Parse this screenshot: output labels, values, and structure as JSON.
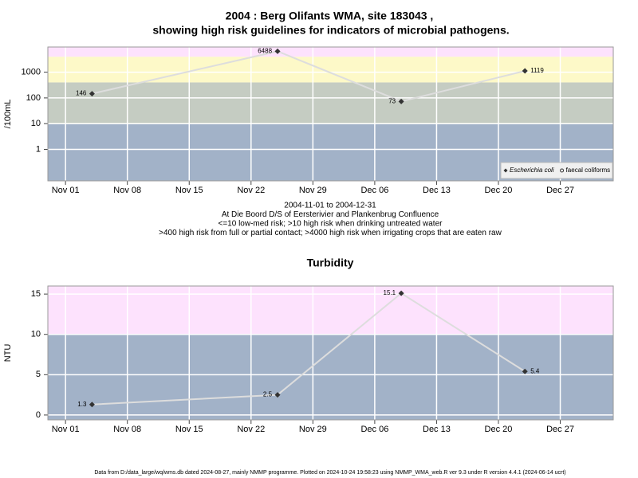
{
  "chart_data": [
    {
      "type": "line",
      "title": "2004 : Berg Olifants WMA, site 183043 ,",
      "subtitle": "showing high risk guidelines for indicators of microbial pathogens.",
      "ylabel": "/100mL",
      "notes": [
        "2004-11-01 to 2004-12-31",
        "At Die Boord D/S of Eersterivier and Plankenbrug Confluence",
        "<=10 low-med risk; >10 high risk when drinking untreated water",
        ">400 high risk from full or partial contact; >4000 high risk when irrigating crops that are eaten raw"
      ],
      "x": [
        "2004-11-04",
        "2004-11-25",
        "2004-12-09",
        "2004-12-23"
      ],
      "series": [
        {
          "name": "Escherichia coli",
          "marker": "diamond",
          "color": "#333333",
          "values": [
            146,
            6488,
            73,
            1119
          ]
        },
        {
          "name": "faecal coliforms",
          "marker": "circle",
          "color": "#333333",
          "values": [
            null,
            null,
            null,
            null
          ]
        }
      ],
      "line_color": "#dddddd",
      "log_y": true,
      "ylim": [
        0.06,
        9500
      ],
      "yticks": [
        1,
        10,
        100,
        1000
      ],
      "xlim": [
        "2004-10-30",
        "2005-01-02"
      ],
      "xticks": [
        {
          "value": "2004-11-01",
          "label": "Nov 01"
        },
        {
          "value": "2004-11-08",
          "label": "Nov 08"
        },
        {
          "value": "2004-11-15",
          "label": "Nov 15"
        },
        {
          "value": "2004-11-22",
          "label": "Nov 22"
        },
        {
          "value": "2004-11-29",
          "label": "Nov 29"
        },
        {
          "value": "2004-12-06",
          "label": "Dec 06"
        },
        {
          "value": "2004-12-13",
          "label": "Dec 13"
        },
        {
          "value": "2004-12-20",
          "label": "Dec 20"
        },
        {
          "value": "2004-12-27",
          "label": "Dec 27"
        }
      ],
      "bands": [
        {
          "range": [
            0.06,
            10
          ],
          "color": "#a2b2c8"
        },
        {
          "range": [
            10,
            400
          ],
          "color": "#c5ccc2"
        },
        {
          "range": [
            400,
            4000
          ],
          "color": "#fdf9c8"
        },
        {
          "range": [
            4000,
            9500
          ],
          "color": "#fde2fd"
        }
      ],
      "grid": true,
      "legend": "bottom-right"
    },
    {
      "type": "line",
      "title": "Turbidity",
      "ylabel": "NTU",
      "x": [
        "2004-11-04",
        "2004-11-25",
        "2004-12-09",
        "2004-12-23"
      ],
      "series": [
        {
          "marker": "diamond",
          "color": "#333333",
          "values": [
            1.3,
            2.5,
            15.1,
            5.4
          ]
        }
      ],
      "line_color": "#dddddd",
      "log_y": false,
      "ylim": [
        -0.6,
        16
      ],
      "yticks": [
        0,
        5,
        10,
        15
      ],
      "xlim": [
        "2004-10-30",
        "2005-01-02"
      ],
      "xticks": [
        {
          "value": "2004-11-01",
          "label": "Nov 01"
        },
        {
          "value": "2004-11-08",
          "label": "Nov 08"
        },
        {
          "value": "2004-11-15",
          "label": "Nov 15"
        },
        {
          "value": "2004-11-22",
          "label": "Nov 22"
        },
        {
          "value": "2004-11-29",
          "label": "Nov 29"
        },
        {
          "value": "2004-12-06",
          "label": "Dec 06"
        },
        {
          "value": "2004-12-13",
          "label": "Dec 13"
        },
        {
          "value": "2004-12-20",
          "label": "Dec 20"
        },
        {
          "value": "2004-12-27",
          "label": "Dec 27"
        }
      ],
      "bands": [
        {
          "range": [
            -0.6,
            10
          ],
          "color": "#a2b2c8"
        },
        {
          "range": [
            10,
            16
          ],
          "color": "#fde2fd"
        }
      ],
      "grid": true
    }
  ],
  "footer": "Data from D:/data_large/wq/wms.db dated 2024-08-27, mainly NMMP programme. Plotted on 2024-10-24 19:58:23 using NMMP_WMA_web.R ver 9.3 under R version 4.4.1 (2024-06-14 ucrt)"
}
